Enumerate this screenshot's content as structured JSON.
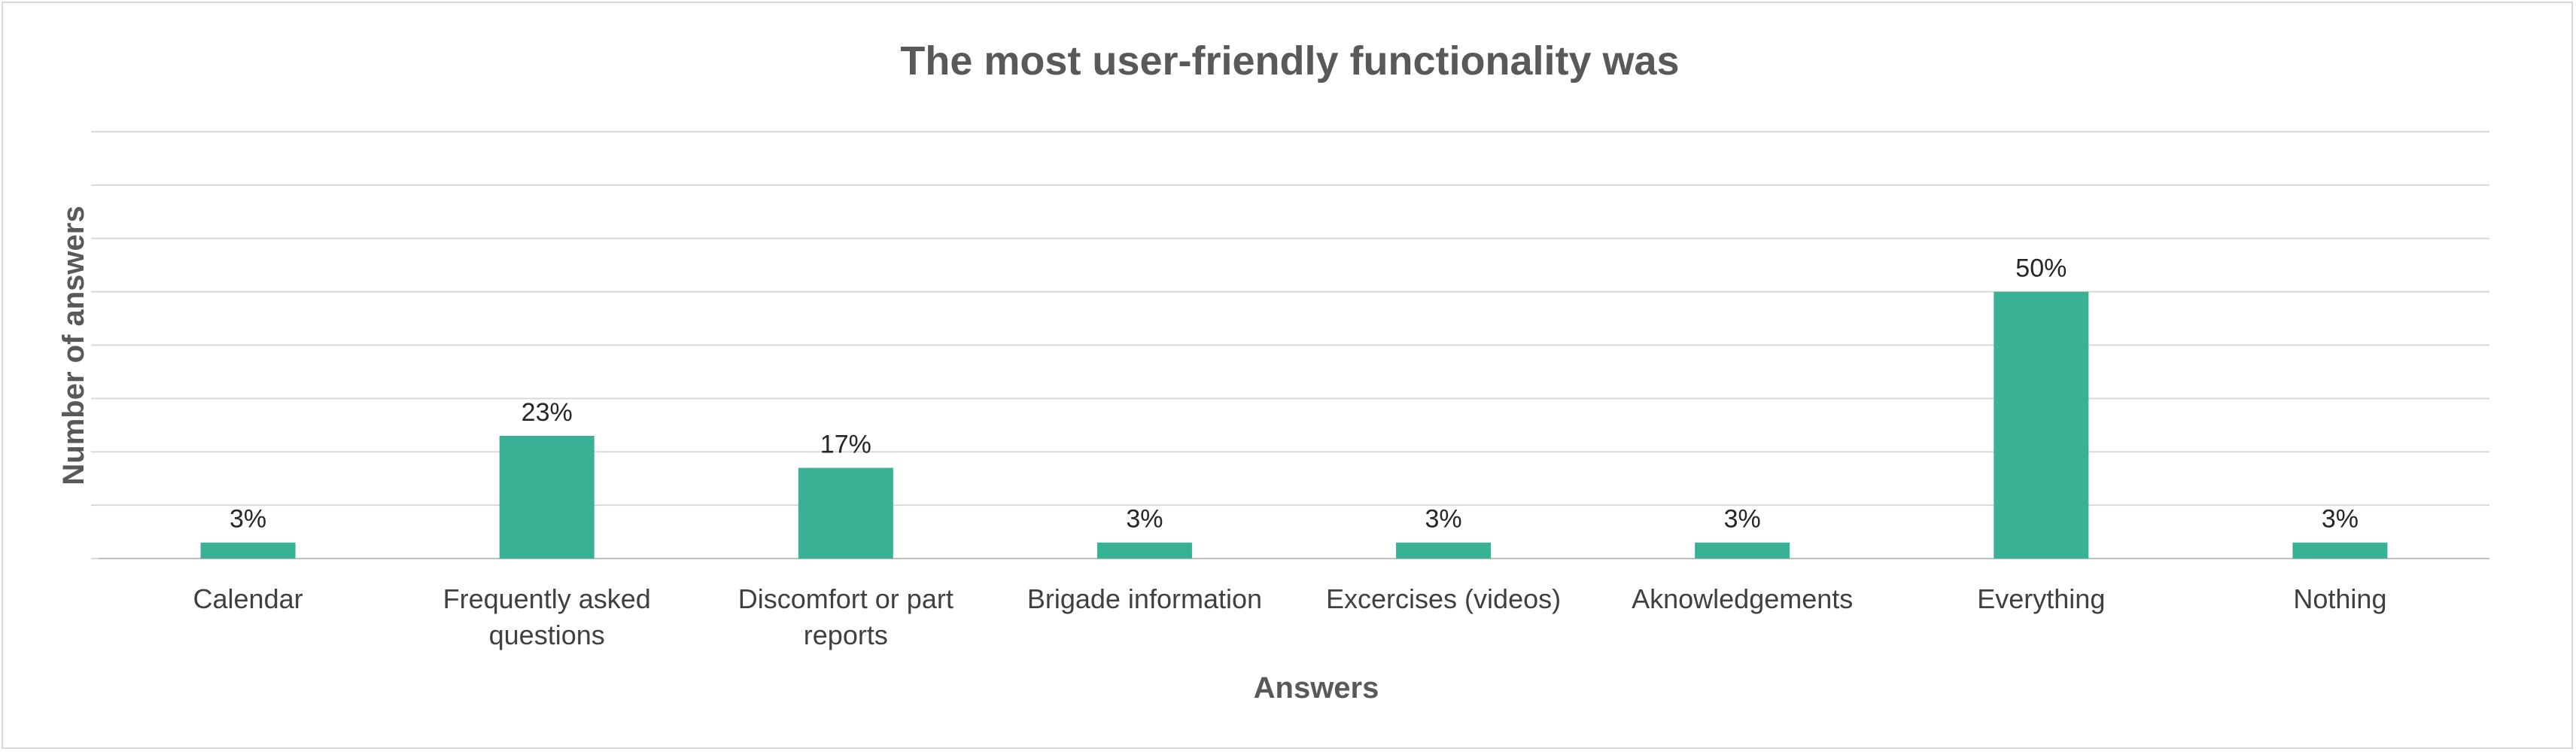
{
  "chart_data": {
    "type": "bar",
    "title": "The most user-friendly functionality was",
    "xlabel": "Answers",
    "ylabel": "Number of answers",
    "categories": [
      [
        "Calendar"
      ],
      [
        "Frequently asked",
        "questions"
      ],
      [
        "Discomfort or part",
        "reports"
      ],
      [
        "Brigade information"
      ],
      [
        "Excercises (videos)"
      ],
      [
        "Aknowledgements"
      ],
      [
        "Everything"
      ],
      [
        "Nothing"
      ]
    ],
    "values": [
      3,
      23,
      17,
      3,
      3,
      3,
      50,
      3
    ],
    "data_labels": [
      "3%",
      "23%",
      "17%",
      "3%",
      "3%",
      "3%",
      "50%",
      "3%"
    ],
    "ylim": [
      0,
      80
    ],
    "grid_step": 10,
    "y_tick_labels_shown": false,
    "grid": true,
    "legend": "none",
    "bar_color": "#38b194"
  }
}
